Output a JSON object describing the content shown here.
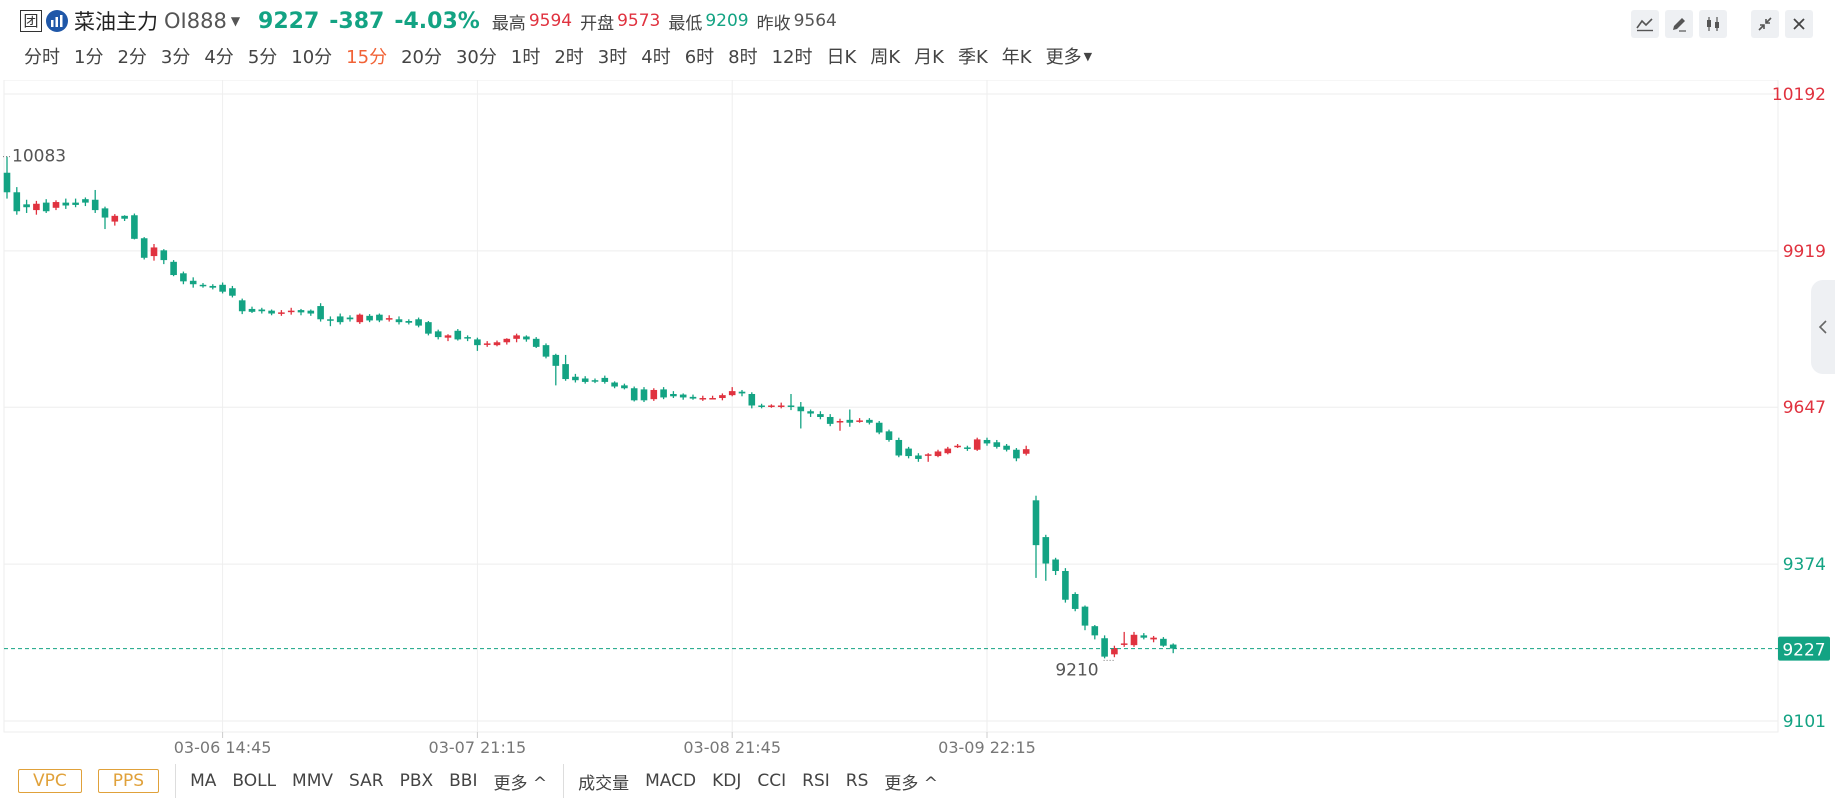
{
  "header": {
    "box_icon_glyph": "团",
    "name": "菜油主力",
    "code": "OI888",
    "price": "9227",
    "change": "-387",
    "change_pct": "-4.03%",
    "high_label": "最高",
    "high": "9594",
    "open_label": "开盘",
    "open": "9573",
    "low_label": "最低",
    "low": "9209",
    "prev_close_label": "昨收",
    "prev_close": "9564"
  },
  "toolbar_icons": [
    "line-draw-icon",
    "pencil-icon",
    "candlestick-icon",
    "collapse-icon",
    "close-icon"
  ],
  "periods": [
    "分时",
    "1分",
    "2分",
    "3分",
    "4分",
    "5分",
    "10分",
    "15分",
    "20分",
    "30分",
    "1时",
    "2时",
    "3时",
    "4时",
    "6时",
    "8时",
    "12时",
    "日K",
    "周K",
    "月K",
    "季K",
    "年K",
    "更多"
  ],
  "active_period": "15分",
  "bottom": {
    "boxes": [
      "VPC",
      "PPS"
    ],
    "main_indicators": [
      "MA",
      "BOLL",
      "MMV",
      "SAR",
      "PBX",
      "BBI"
    ],
    "main_more": "更多 ^",
    "sub_indicators": [
      "成交量",
      "MACD",
      "KDJ",
      "CCI",
      "RSI",
      "RS"
    ],
    "sub_more": "更多 ^"
  },
  "colors": {
    "up": "#e0323f",
    "down": "#13a383",
    "active_tab": "#f16236",
    "grid": "#eeeeee"
  },
  "chart_data": {
    "type": "candlestick",
    "ylim": [
      9101,
      10192
    ],
    "y_ticks": [
      "10192",
      "9919",
      "9647",
      "9374",
      "9101"
    ],
    "last_price": "9227",
    "x_tick_labels": [
      {
        "label": "03-06 14:45",
        "index": 22
      },
      {
        "label": "03-07 21:15",
        "index": 48
      },
      {
        "label": "03-08 21:45",
        "index": 74
      },
      {
        "label": "03-09 22:15",
        "index": 100
      }
    ],
    "annotations": [
      {
        "text": "10083",
        "index": 0,
        "value": 10083
      },
      {
        "text": "9210",
        "index": 112,
        "value": 9210
      }
    ],
    "candles": [
      [
        10055,
        10021,
        10083,
        10010
      ],
      [
        10021,
        9988,
        10030,
        9982
      ],
      [
        10000,
        9995,
        10008,
        9985
      ],
      [
        9990,
        10001,
        10006,
        9982
      ],
      [
        10003,
        9988,
        10009,
        9985
      ],
      [
        9994,
        10004,
        10007,
        9990
      ],
      [
        10003,
        9998,
        10010,
        9992
      ],
      [
        10003,
        9999,
        10010,
        9995
      ],
      [
        10009,
        10003,
        10012,
        9997
      ],
      [
        10008,
        9990,
        10025,
        9985
      ],
      [
        9993,
        9977,
        9996,
        9957
      ],
      [
        9970,
        9980,
        9983,
        9963
      ],
      [
        9980,
        9975,
        9981,
        9971
      ],
      [
        9981,
        9940,
        9984,
        9939
      ],
      [
        9941,
        9907,
        9943,
        9904
      ],
      [
        9910,
        9925,
        9931,
        9902
      ],
      [
        9920,
        9903,
        9922,
        9896
      ],
      [
        9900,
        9877,
        9903,
        9875
      ],
      [
        9880,
        9866,
        9883,
        9861
      ],
      [
        9867,
        9861,
        9873,
        9855
      ],
      [
        9860,
        9858,
        9863,
        9855
      ],
      [
        9858,
        9855,
        9861,
        9852
      ],
      [
        9860,
        9848,
        9864,
        9845
      ],
      [
        9854,
        9841,
        9858,
        9838
      ],
      [
        9833,
        9814,
        9836,
        9809
      ],
      [
        9818,
        9813,
        9822,
        9811
      ],
      [
        9817,
        9814,
        9820,
        9810
      ],
      [
        9815,
        9810,
        9817,
        9807
      ],
      [
        9812,
        9812,
        9816,
        9806
      ],
      [
        9813,
        9815,
        9820,
        9808
      ],
      [
        9816,
        9812,
        9818,
        9807
      ],
      [
        9815,
        9810,
        9817,
        9806
      ],
      [
        9823,
        9800,
        9828,
        9796
      ],
      [
        9800,
        9798,
        9805,
        9788
      ],
      [
        9805,
        9795,
        9810,
        9791
      ],
      [
        9803,
        9800,
        9807,
        9796
      ],
      [
        9795,
        9808,
        9810,
        9792
      ],
      [
        9806,
        9798,
        9809,
        9795
      ],
      [
        9808,
        9798,
        9810,
        9795
      ],
      [
        9800,
        9802,
        9807,
        9796
      ],
      [
        9800,
        9795,
        9805,
        9791
      ],
      [
        9797,
        9794,
        9800,
        9791
      ],
      [
        9800,
        9789,
        9803,
        9786
      ],
      [
        9795,
        9775,
        9797,
        9772
      ],
      [
        9779,
        9769,
        9782,
        9765
      ],
      [
        9768,
        9772,
        9774,
        9762
      ],
      [
        9780,
        9765,
        9783,
        9763
      ],
      [
        9769,
        9767,
        9772,
        9762
      ],
      [
        9765,
        9755,
        9768,
        9745
      ],
      [
        9757,
        9758,
        9762,
        9752
      ],
      [
        9755,
        9760,
        9763,
        9753
      ],
      [
        9760,
        9766,
        9767,
        9756
      ],
      [
        9766,
        9772,
        9775,
        9760
      ],
      [
        9770,
        9765,
        9772,
        9761
      ],
      [
        9766,
        9752,
        9769,
        9750
      ],
      [
        9755,
        9735,
        9758,
        9732
      ],
      [
        9738,
        9719,
        9740,
        9685
      ],
      [
        9722,
        9696,
        9738,
        9693
      ],
      [
        9700,
        9694,
        9705,
        9690
      ],
      [
        9697,
        9691,
        9701,
        9688
      ],
      [
        9694,
        9692,
        9697,
        9689
      ],
      [
        9698,
        9691,
        9702,
        9688
      ],
      [
        9690,
        9683,
        9692,
        9680
      ],
      [
        9685,
        9680,
        9688,
        9678
      ],
      [
        9680,
        9659,
        9683,
        9657
      ],
      [
        9678,
        9659,
        9682,
        9656
      ],
      [
        9661,
        9677,
        9680,
        9658
      ],
      [
        9678,
        9664,
        9682,
        9661
      ],
      [
        9670,
        9666,
        9675,
        9663
      ],
      [
        9669,
        9664,
        9671,
        9660
      ],
      [
        9665,
        9662,
        9669,
        9660
      ],
      [
        9662,
        9663,
        9667,
        9658
      ],
      [
        9663,
        9663,
        9667,
        9661
      ],
      [
        9663,
        9668,
        9671,
        9659
      ],
      [
        9668,
        9675,
        9682,
        9666
      ],
      [
        9674,
        9671,
        9677,
        9666
      ],
      [
        9670,
        9650,
        9673,
        9645
      ],
      [
        9650,
        9649,
        9653,
        9645
      ],
      [
        9649,
        9650,
        9652,
        9646
      ],
      [
        9648,
        9650,
        9655,
        9645
      ],
      [
        9650,
        9648,
        9670,
        9642
      ],
      [
        9648,
        9640,
        9656,
        9610
      ],
      [
        9640,
        9636,
        9643,
        9630
      ],
      [
        9635,
        9630,
        9640,
        9626
      ],
      [
        9630,
        9618,
        9635,
        9614
      ],
      [
        9621,
        9623,
        9627,
        9606
      ],
      [
        9625,
        9620,
        9643,
        9613
      ],
      [
        9624,
        9624,
        9628,
        9620
      ],
      [
        9625,
        9620,
        9628,
        9617
      ],
      [
        9620,
        9603,
        9623,
        9600
      ],
      [
        9605,
        9590,
        9608,
        9587
      ],
      [
        9590,
        9563,
        9594,
        9560
      ],
      [
        9575,
        9562,
        9578,
        9558
      ],
      [
        9563,
        9557,
        9567,
        9552
      ],
      [
        9563,
        9565,
        9567,
        9552
      ],
      [
        9562,
        9570,
        9573,
        9560
      ],
      [
        9567,
        9575,
        9578,
        9565
      ],
      [
        9578,
        9580,
        9583,
        9576
      ],
      [
        9577,
        9575,
        9580,
        9571
      ],
      [
        9573,
        9591,
        9594,
        9571
      ],
      [
        9590,
        9584,
        9594,
        9580
      ],
      [
        9586,
        9578,
        9590,
        9575
      ],
      [
        9580,
        9573,
        9583,
        9570
      ],
      [
        9573,
        9558,
        9576,
        9553
      ],
      [
        9566,
        9574,
        9580,
        9563
      ],
      [
        9485,
        9407,
        9493,
        9350
      ],
      [
        9421,
        9375,
        9425,
        9345
      ],
      [
        9382,
        9362,
        9385,
        9355
      ],
      [
        9362,
        9312,
        9367,
        9307
      ],
      [
        9322,
        9296,
        9325,
        9292
      ],
      [
        9300,
        9267,
        9302,
        9259
      ],
      [
        9266,
        9250,
        9268,
        9243
      ],
      [
        9245,
        9213,
        9250,
        9210
      ],
      [
        9217,
        9228,
        9232,
        9212
      ],
      [
        9235,
        9236,
        9256,
        9230
      ],
      [
        9233,
        9251,
        9256,
        9230
      ],
      [
        9250,
        9246,
        9254,
        9243
      ],
      [
        9243,
        9246,
        9249,
        9238
      ],
      [
        9244,
        9232,
        9247,
        9230
      ],
      [
        9234,
        9227,
        9236,
        9219
      ]
    ]
  }
}
